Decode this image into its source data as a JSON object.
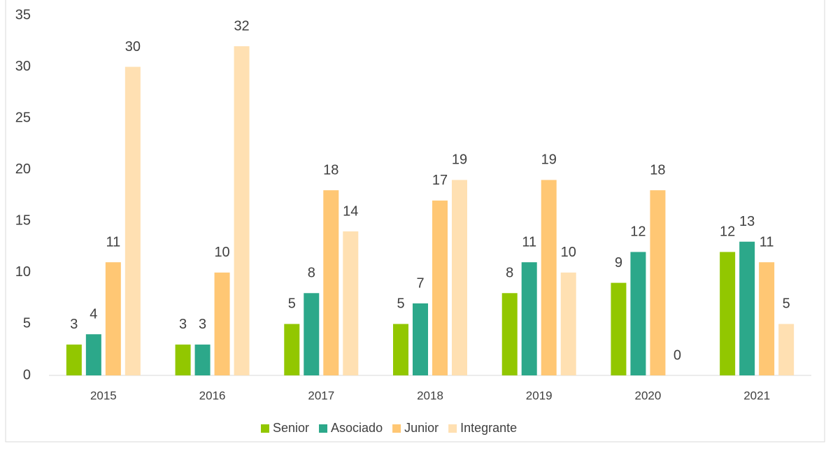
{
  "chart_data": {
    "type": "bar",
    "categories": [
      "2015",
      "2016",
      "2017",
      "2018",
      "2019",
      "2020",
      "2021"
    ],
    "series": [
      {
        "name": "Senior",
        "color": "#92c700",
        "values": [
          3,
          3,
          5,
          5,
          8,
          9,
          12
        ]
      },
      {
        "name": "Asociado",
        "color": "#2ca88a",
        "values": [
          4,
          3,
          8,
          7,
          11,
          12,
          13
        ]
      },
      {
        "name": "Junior",
        "color": "#ffc774",
        "values": [
          11,
          10,
          18,
          17,
          19,
          18,
          11
        ]
      },
      {
        "name": "Integrante",
        "color": "#ffe0b2",
        "values": [
          30,
          32,
          14,
          19,
          10,
          0,
          5
        ]
      }
    ],
    "ylim": [
      0,
      35
    ],
    "yticks": [
      0,
      5,
      10,
      15,
      20,
      25,
      30,
      35
    ],
    "grid": false,
    "legend": "bottom"
  }
}
